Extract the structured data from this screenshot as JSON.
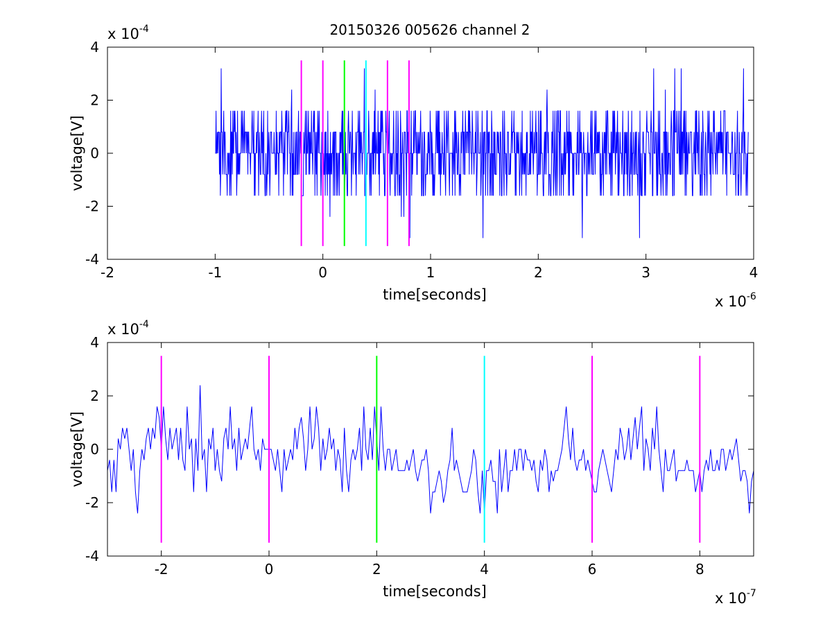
{
  "figure_title": "20150326 005626 channel 2",
  "colors": {
    "signal": "#0000ff",
    "marker_magenta": "#ff00ff",
    "marker_green": "#00ff00",
    "marker_cyan": "#00ffff"
  },
  "chart_data": [
    {
      "type": "line",
      "title": "20150326 005626 channel 2",
      "xlabel": "time[seconds]",
      "ylabel": "voltage[V]",
      "x_exponent_label": {
        "base": "x 10",
        "exp": "-6"
      },
      "y_exponent_label": {
        "base": "x 10",
        "exp": "-4"
      },
      "xlim": [
        -2,
        4
      ],
      "ylim": [
        -4,
        4
      ],
      "x_ticks": [
        "-2",
        "-1",
        "0",
        "1",
        "2",
        "3",
        "4"
      ],
      "y_ticks": [
        "-4",
        "-2",
        "0",
        "2",
        "4"
      ],
      "grid": false,
      "series": [
        {
          "signal_x_range": [
            -1,
            3.95
          ],
          "signal_y_levels": [
            -3.2,
            -2.4,
            -1.6,
            -0.8,
            0,
            0.8,
            1.6,
            2.4,
            3.2
          ],
          "typical_y_range": [
            -1.6,
            1.6
          ]
        }
      ],
      "markers": [
        {
          "x": -0.2,
          "color": "magenta",
          "y_range": [
            -3.5,
            3.5
          ]
        },
        {
          "x": 0.0,
          "color": "magenta",
          "y_range": [
            -3.5,
            3.5
          ]
        },
        {
          "x": 0.2,
          "color": "green",
          "y_range": [
            -3.5,
            3.5
          ]
        },
        {
          "x": 0.4,
          "color": "cyan",
          "y_range": [
            -3.5,
            3.5
          ]
        },
        {
          "x": 0.6,
          "color": "magenta",
          "y_range": [
            -3.5,
            3.5
          ]
        },
        {
          "x": 0.8,
          "color": "magenta",
          "y_range": [
            -3.5,
            3.5
          ]
        }
      ]
    },
    {
      "type": "line",
      "title": "",
      "xlabel": "time[seconds]",
      "ylabel": "voltage[V]",
      "x_exponent_label": {
        "base": "x 10",
        "exp": "-7"
      },
      "y_exponent_label": {
        "base": "x 10",
        "exp": "-4"
      },
      "xlim": [
        -3,
        9
      ],
      "ylim": [
        -4,
        4
      ],
      "x_ticks": [
        "-2",
        "0",
        "2",
        "4",
        "6",
        "8"
      ],
      "y_ticks": [
        "-4",
        "-2",
        "0",
        "2",
        "4"
      ],
      "grid": false,
      "series": [
        {
          "x_start": -3,
          "x_step": 0.04,
          "values": [
            -0.8,
            -0.4,
            -1.6,
            -0.4,
            -1.6,
            0.4,
            0.0,
            0.8,
            0.4,
            0.8,
            0.0,
            -0.8,
            0.0,
            -1.6,
            -2.4,
            -0.8,
            0.0,
            -0.4,
            0.4,
            0.8,
            0.0,
            0.8,
            0.4,
            1.6,
            1.2,
            0.0,
            1.6,
            0.4,
            -0.4,
            0.8,
            0.0,
            0.4,
            0.8,
            -0.4,
            0.8,
            -0.4,
            -0.8,
            1.6,
            0.0,
            0.4,
            -1.6,
            0.4,
            -0.8,
            2.4,
            -0.4,
            0.0,
            -1.6,
            0.4,
            0.0,
            0.8,
            -0.8,
            0.0,
            -0.8,
            -1.2,
            0.4,
            0.8,
            0.0,
            1.6,
            0.0,
            0.4,
            -0.8,
            0.8,
            -0.4,
            0.0,
            0.4,
            0.0,
            0.8,
            1.6,
            0.0,
            -0.4,
            0.0,
            -0.8,
            0.4,
            0.0,
            0.0,
            0.0,
            0.0,
            -0.4,
            -0.8,
            0.0,
            -0.8,
            -1.6,
            0.0,
            -0.8,
            -0.4,
            0.0,
            -0.4,
            0.8,
            0.0,
            0.8,
            1.2,
            0.4,
            -0.8,
            0.0,
            1.6,
            0.0,
            0.4,
            1.6,
            0.8,
            -0.8,
            0.4,
            -0.4,
            0.0,
            0.8,
            0.0,
            0.4,
            -0.8,
            0.0,
            -0.4,
            -1.6,
            0.8,
            -0.8,
            -1.6,
            -0.4,
            0.0,
            -0.4,
            0.0,
            0.8,
            -0.8,
            1.6,
            0.0,
            -0.4,
            0.8,
            -0.4,
            1.6,
            0.4,
            -0.8,
            1.6,
            0.0,
            -0.8,
            0.0,
            0.0,
            -0.8,
            -0.4,
            0.0,
            -0.8,
            -0.8,
            -0.8,
            -0.8,
            -0.4,
            -0.8,
            -0.4,
            0.0,
            -0.8,
            -1.2,
            -0.8,
            -0.4,
            -0.4,
            0.0,
            -0.8,
            -2.4,
            -1.6,
            -1.6,
            -1.2,
            -0.8,
            -1.2,
            -2.0,
            -1.6,
            -0.8,
            -0.4,
            0.8,
            -0.8,
            -0.4,
            -0.8,
            -1.2,
            -1.6,
            -1.6,
            -1.6,
            -1.2,
            -0.8,
            0.0,
            -0.4,
            -1.6,
            -2.4,
            -0.8,
            -2.4,
            -0.8,
            -0.8,
            -0.4,
            -1.2,
            -1.2,
            -2.4,
            0.0,
            -1.6,
            -0.8,
            0.0,
            -1.6,
            -0.8,
            -0.8,
            0.0,
            -0.8,
            0.0,
            0.0,
            -0.8,
            0.0,
            -0.4,
            -0.4,
            -0.8,
            -0.4,
            -1.2,
            -1.6,
            -0.4,
            -0.8,
            0.0,
            -0.4,
            -1.6,
            -0.8,
            -1.2,
            -0.8,
            -0.8,
            -0.4,
            0.0,
            0.8,
            1.6,
            0.4,
            -0.4,
            0.8,
            -0.4,
            -0.8,
            -0.4,
            -0.4,
            0.0,
            -0.8,
            -0.4,
            -0.8,
            -1.2,
            -1.6,
            -1.6,
            -0.8,
            -0.4,
            0.0,
            -0.4,
            -0.8,
            -1.2,
            -1.6,
            -0.8,
            0.0,
            -0.4,
            0.8,
            0.4,
            -0.4,
            0.0,
            0.8,
            -0.4,
            0.4,
            1.2,
            0.0,
            0.8,
            1.6,
            -0.8,
            0.4,
            0.0,
            -0.8,
            0.8,
            0.0,
            1.6,
            0.0,
            -0.8,
            -1.6,
            0.0,
            -0.8,
            -0.8,
            -0.4,
            0.0,
            -1.2,
            -0.8,
            -0.8,
            -0.8,
            -0.8,
            -0.4,
            -0.8,
            -0.8,
            -0.8,
            -1.6,
            -1.2,
            -0.8,
            -1.6,
            -0.8,
            -0.4,
            -0.8,
            0.0,
            -0.8,
            -0.8,
            -0.4,
            -0.8,
            0.0,
            0.0,
            -0.8,
            -0.4,
            0.0,
            -0.4,
            0.0,
            0.4,
            -0.4,
            -1.2,
            -0.8,
            -0.8,
            -1.2,
            -2.4,
            -1.2,
            -0.8,
            -0.4,
            0.0,
            -0.4,
            0.0,
            0.8,
            0.0,
            -0.8,
            0.0,
            -0.8,
            -0.8,
            0.0,
            0.0,
            -0.8,
            -0.8,
            -1.6,
            -0.8,
            -0.8,
            0.0,
            0.8,
            0.0,
            0.8,
            0.8,
            0.4,
            0.8,
            0.0,
            -0.4,
            0.0,
            0.4,
            0.0,
            0.8,
            0.4,
            0.0,
            -0.4,
            -0.8,
            -1.2,
            -0.8,
            -1.6,
            -0.8,
            -0.4,
            0.0,
            0.4,
            1.2,
            -0.4,
            0.8,
            0.8,
            0.0,
            0.4,
            0.8,
            0.0,
            1.2,
            0.4,
            0.0,
            0.8,
            1.2,
            0.0,
            0.8,
            1.6,
            1.2,
            0.8,
            1.6,
            0.0,
            0.8,
            1.2,
            0.8,
            0.0,
            0.8,
            1.6,
            0.8,
            0.4,
            1.2,
            0.8,
            0.0,
            0.8,
            -0.4,
            0.0,
            0.8,
            0.0,
            0.8,
            0.0,
            0.8,
            0.4,
            0.0,
            0.8,
            -0.4,
            0.8,
            -0.8,
            -0.8,
            -1.6,
            0.0,
            -0.8,
            0.8,
            0.0,
            0.8,
            0.0,
            0.4,
            0.8,
            0.0,
            -0.4,
            0.8,
            0.0,
            1.2,
            0.4,
            -0.8,
            -1.2,
            0.0,
            0.8,
            0.0,
            0.8,
            -0.8,
            -1.2,
            0.0,
            0.4,
            0.8,
            0.0,
            1.2,
            0.4,
            0.8,
            0.4,
            1.6,
            0.8,
            0.0,
            1.6,
            1.2,
            0.4,
            1.2,
            0.8,
            1.6,
            0.8,
            0.0,
            1.6,
            0.8,
            1.6,
            0.8,
            0.4,
            0.8,
            1.2,
            0.8,
            1.6,
            0.8,
            0.4,
            0.0,
            0.4,
            1.2,
            0.8,
            0.0,
            1.2,
            0.8,
            1.6,
            2.4,
            0.8,
            1.2,
            1.6,
            2.0,
            0.8,
            0.0,
            0.8,
            1.6,
            0.8,
            0.0,
            1.6,
            2.4,
            1.2,
            0.8,
            1.6,
            0.8,
            0.4,
            1.2,
            0.8,
            1.6,
            0.8,
            0.0,
            1.2,
            1.6,
            0.8,
            2.4,
            1.6,
            0.8,
            1.2,
            0.8,
            0.0,
            1.6,
            0.8,
            1.2,
            0.4,
            -0.4,
            0.8,
            1.6,
            0.8,
            1.2,
            1.6,
            2.4,
            1.6,
            0.8,
            0.8,
            1.6,
            2.4,
            1.6,
            0.4,
            2.0,
            0.0,
            1.6,
            0.8,
            1.6,
            0.0,
            0.8,
            1.2,
            0.8,
            -0.8,
            -0.4,
            1.2,
            0.0,
            0.8,
            1.6,
            0.4,
            0.8,
            1.6,
            0.0,
            -0.4,
            1.2,
            0.8,
            1.6,
            0.8,
            0.0,
            0.8,
            1.6,
            0.0,
            0.0,
            2.4,
            0.0,
            0.8,
            0.8,
            1.6,
            0.8,
            0.4,
            0.8,
            1.2,
            0.4,
            0.8,
            1.6,
            1.2,
            1.6,
            1.6,
            1.6,
            0.8,
            1.6,
            1.2,
            0.8,
            1.6,
            1.2,
            0.8,
            1.6,
            1.2,
            1.6,
            0.8,
            0.8,
            1.2,
            1.6,
            1.6,
            1.6,
            1.6,
            1.6,
            0.8,
            0.8,
            1.2,
            1.6,
            1.6,
            0.8,
            0.8
          ]
        }
      ],
      "markers": [
        {
          "x": -2,
          "color": "magenta",
          "y_range": [
            -3.5,
            3.5
          ]
        },
        {
          "x": 0,
          "color": "magenta",
          "y_range": [
            -3.5,
            3.5
          ]
        },
        {
          "x": 2,
          "color": "green",
          "y_range": [
            -3.5,
            3.5
          ]
        },
        {
          "x": 4,
          "color": "cyan",
          "y_range": [
            -3.5,
            3.5
          ]
        },
        {
          "x": 6,
          "color": "magenta",
          "y_range": [
            -3.5,
            3.5
          ]
        },
        {
          "x": 8,
          "color": "magenta",
          "y_range": [
            -3.5,
            3.5
          ]
        }
      ]
    }
  ]
}
